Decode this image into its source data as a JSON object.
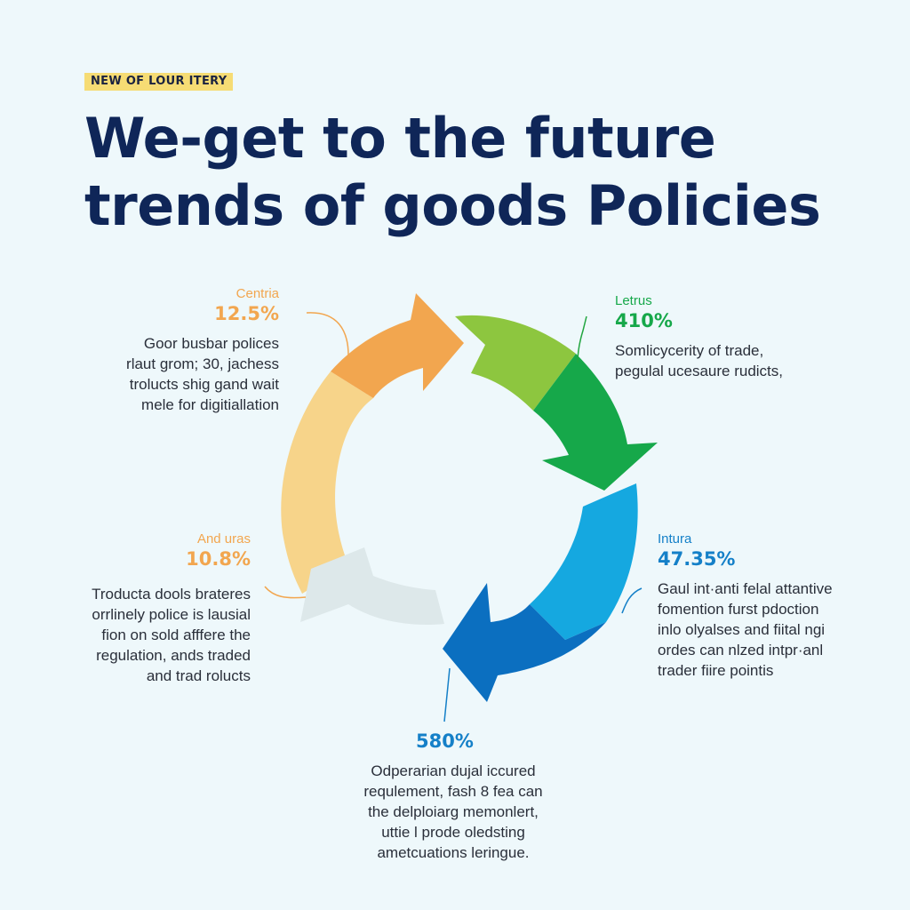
{
  "tag": "NEW OF LOUR ITERY",
  "title": {
    "line1": "We-get to the future",
    "line2": "trends of goods Policies"
  },
  "colors": {
    "orange": "#f2a64f",
    "orange_light": "#f7d48a",
    "green_light": "#8dc63f",
    "green": "#16a84a",
    "blue_light": "#15a8e0",
    "blue": "#0b6fc0",
    "gray": "#dde8ea",
    "title": "#0f2658"
  },
  "segments": [
    {
      "id": "top-left",
      "name": "Centria",
      "value": "12.5%",
      "color": "#f2a64f",
      "desc": [
        "Goor busbar polices",
        "rlaut grom; 30, jachess",
        "trolucts shig gand wait",
        "mele for digitiallation"
      ]
    },
    {
      "id": "top-right",
      "name": "Letrus",
      "value": "410%",
      "color": "#22a540",
      "desc": [
        "Somlicycerity of trade,",
        "pegulal ucesaure rudicts,"
      ]
    },
    {
      "id": "right",
      "name": "Intura",
      "value": "47.35%",
      "color": "#1580c8",
      "desc": [
        "Gaul int·anti felal attantive",
        "fomention furst pdoction",
        "inlo olyalses and fiital ngi",
        "ordes can nlzed intpr·anl",
        "trader fiire pointis"
      ]
    },
    {
      "id": "bottom",
      "name": "",
      "value": "580%",
      "color": "#1580c8",
      "desc": [
        "Odperarian dujal iccured",
        "requlement, fash 8 fea can",
        "the delploiarg memonlert,",
        "uttie l prode oledsting",
        "ametcuations leringue."
      ]
    },
    {
      "id": "left",
      "name": "And uras",
      "value": "10.8%",
      "color": "#f2a64f",
      "desc": [
        "Troducta dools brateres",
        "orrlinely police is lausial",
        "fion on sold afffere the",
        "regulation, ands traded",
        "and trad rolucts"
      ]
    }
  ]
}
